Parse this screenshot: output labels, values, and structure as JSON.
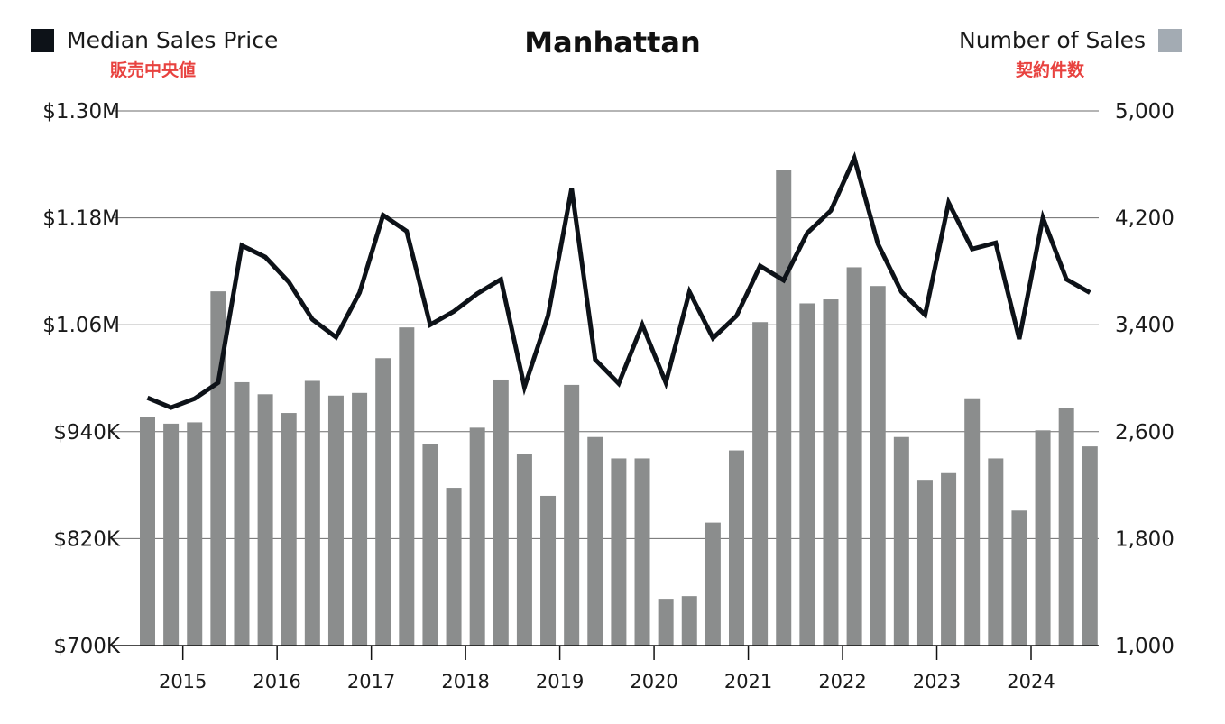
{
  "legend": {
    "left": {
      "label": "Median Sales Price",
      "sub": "販売中央値",
      "color": "#0d1218"
    },
    "right": {
      "label": "Number of Sales",
      "sub": "契約件数",
      "color": "#a3abb3"
    }
  },
  "chart_data": {
    "type": "bar+line",
    "title": "Manhattan",
    "y_left": {
      "label": "",
      "ticks": [
        "$1.30M",
        "$1.18M",
        "$1.06M",
        "$940K",
        "$820K",
        "$700K"
      ],
      "range": [
        700000,
        1300000
      ]
    },
    "y_right": {
      "label": "",
      "ticks": [
        "5,000",
        "4,200",
        "3,400",
        "2,600",
        "1,800",
        "1,000"
      ],
      "range": [
        1000,
        5000
      ]
    },
    "x_labels": [
      "2015",
      "2016",
      "2017",
      "2018",
      "2019",
      "2020",
      "2021",
      "2022",
      "2023",
      "2024"
    ],
    "quarters": [
      "2014-Q4",
      "2015-Q1",
      "2015-Q2",
      "2015-Q3",
      "2015-Q4",
      "2016-Q1",
      "2016-Q2",
      "2016-Q3",
      "2016-Q4",
      "2017-Q1",
      "2017-Q2",
      "2017-Q3",
      "2017-Q4",
      "2018-Q1",
      "2018-Q2",
      "2018-Q3",
      "2018-Q4",
      "2019-Q1",
      "2019-Q2",
      "2019-Q3",
      "2019-Q4",
      "2020-Q1",
      "2020-Q2",
      "2020-Q3",
      "2020-Q4",
      "2021-Q1",
      "2021-Q2",
      "2021-Q3",
      "2021-Q4",
      "2022-Q1",
      "2022-Q2",
      "2022-Q3",
      "2022-Q4",
      "2023-Q1",
      "2023-Q2",
      "2023-Q3",
      "2023-Q4",
      "2024-Q1",
      "2024-Q2",
      "2024-Q3",
      "2024-Q4"
    ],
    "series": [
      {
        "name": "Number of Sales",
        "type": "bar",
        "axis": "right",
        "values": [
          2710,
          2660,
          2670,
          3650,
          2970,
          2880,
          2740,
          2980,
          2870,
          2890,
          3150,
          3380,
          2510,
          2180,
          2630,
          2990,
          2430,
          2120,
          2950,
          2560,
          2400,
          2400,
          1350,
          1370,
          1920,
          2460,
          3420,
          4560,
          3560,
          3590,
          3830,
          3690,
          2560,
          2240,
          2290,
          2850,
          2400,
          2010,
          2610,
          2780,
          2490
        ]
      },
      {
        "name": "Median Sales Price",
        "type": "line",
        "axis": "left",
        "values": [
          978000,
          967000,
          977000,
          995000,
          1149000,
          1136000,
          1108000,
          1066000,
          1046000,
          1096000,
          1183000,
          1165000,
          1060000,
          1075000,
          1095000,
          1111000,
          990000,
          1070000,
          1213000,
          1021000,
          994000,
          1060000,
          995000,
          1097000,
          1045000,
          1070000,
          1126000,
          1110000,
          1163000,
          1188000,
          1247000,
          1151000,
          1097000,
          1071000,
          1197000,
          1145000,
          1152000,
          1044000,
          1180000,
          1111000,
          1096000
        ]
      }
    ],
    "grid": "horizontal",
    "legend_placement": "top"
  }
}
